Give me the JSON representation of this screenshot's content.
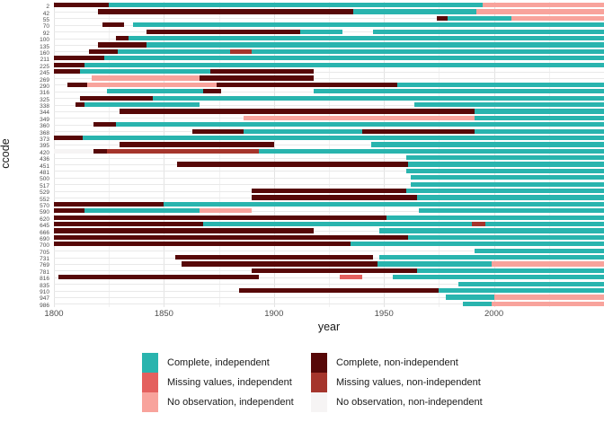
{
  "figure": {
    "x_axis_title": "year",
    "y_axis_title": "ccode",
    "x_ticks": [
      1800,
      1850,
      1900,
      1950,
      2000
    ],
    "x_minor": [
      1825,
      1875,
      1925,
      1975,
      2025
    ],
    "grid": {
      "major_color": "#e3e3e3",
      "minor_color": "#f1f1f1",
      "row_line_color": "#e9e9e9"
    },
    "background": "#ffffff"
  },
  "legend": {
    "items": [
      {
        "key": "CI",
        "label": "Complete, independent",
        "color": "#29b4ae"
      },
      {
        "key": "MI",
        "label": "Missing values, independent",
        "color": "#e4605e"
      },
      {
        "key": "NI",
        "label": "No observation, independent",
        "color": "#f8a39c"
      },
      {
        "key": "CN",
        "label": "Complete, non-independent",
        "color": "#570808"
      },
      {
        "key": "MN",
        "label": "Missing values, non-independent",
        "color": "#a5352c"
      },
      {
        "key": "NN",
        "label": "No observation, non-independent",
        "color": "#f6f4f4"
      }
    ],
    "columns": [
      [
        "CI",
        "MI",
        "NI"
      ],
      [
        "CN",
        "MN",
        "NN"
      ]
    ]
  },
  "chart_data": {
    "type": "status-timeline-gantt",
    "title": "",
    "xlabel": "year",
    "ylabel": "ccode",
    "x_range": [
      1800,
      2050
    ],
    "x_ticks": [
      1800,
      1850,
      1900,
      1950,
      2000
    ],
    "legend_position": "bottom",
    "rows": [
      {
        "code": "2",
        "segments": [
          [
            1800,
            1825,
            "CN"
          ],
          [
            1825,
            1995,
            "CI"
          ],
          [
            1995,
            2050,
            "NI"
          ]
        ]
      },
      {
        "code": "42",
        "segments": [
          [
            1820,
            1936,
            "CN"
          ],
          [
            1936,
            1992,
            "CI"
          ],
          [
            1992,
            2050,
            "NI"
          ]
        ]
      },
      {
        "code": "55",
        "segments": [
          [
            1974,
            1979,
            "CN"
          ],
          [
            1979,
            2008,
            "CI"
          ],
          [
            2008,
            2050,
            "NI"
          ]
        ]
      },
      {
        "code": "70",
        "segments": [
          [
            1822,
            1832,
            "CN"
          ],
          [
            1836,
            2050,
            "CI"
          ]
        ]
      },
      {
        "code": "92",
        "segments": [
          [
            1842,
            1912,
            "CN"
          ],
          [
            1912,
            1931,
            "CI"
          ],
          [
            1945,
            2050,
            "CI"
          ]
        ]
      },
      {
        "code": "100",
        "segments": [
          [
            1828,
            1834,
            "CN"
          ],
          [
            1834,
            2050,
            "CI"
          ]
        ]
      },
      {
        "code": "135",
        "segments": [
          [
            1820,
            1842,
            "CN"
          ],
          [
            1842,
            2050,
            "CI"
          ]
        ]
      },
      {
        "code": "160",
        "segments": [
          [
            1816,
            1829,
            "CN"
          ],
          [
            1829,
            1880,
            "CI"
          ],
          [
            1880,
            1890,
            "MN"
          ],
          [
            1890,
            2050,
            "CI"
          ]
        ]
      },
      {
        "code": "211",
        "segments": [
          [
            1800,
            1823,
            "CN"
          ],
          [
            1823,
            2050,
            "CI"
          ]
        ]
      },
      {
        "code": "225",
        "segments": [
          [
            1800,
            1814,
            "CN"
          ],
          [
            1814,
            2050,
            "CI"
          ]
        ]
      },
      {
        "code": "245",
        "segments": [
          [
            1800,
            1812,
            "CN"
          ],
          [
            1812,
            1871,
            "CI"
          ],
          [
            1871,
            1918,
            "CN"
          ]
        ]
      },
      {
        "code": "269",
        "segments": [
          [
            1817,
            1866,
            "NI"
          ],
          [
            1866,
            1918,
            "CN"
          ]
        ]
      },
      {
        "code": "290",
        "segments": [
          [
            1806,
            1815,
            "CN"
          ],
          [
            1815,
            1874,
            "NI"
          ],
          [
            1874,
            1956,
            "CN"
          ],
          [
            1956,
            2050,
            "CI"
          ]
        ]
      },
      {
        "code": "316",
        "segments": [
          [
            1824,
            1868,
            "CI"
          ],
          [
            1868,
            1876,
            "CN"
          ],
          [
            1918,
            2050,
            "CI"
          ]
        ]
      },
      {
        "code": "325",
        "segments": [
          [
            1812,
            1845,
            "CN"
          ],
          [
            1845,
            2050,
            "CI"
          ]
        ]
      },
      {
        "code": "338",
        "segments": [
          [
            1810,
            1814,
            "CN"
          ],
          [
            1814,
            1866,
            "CI"
          ],
          [
            1964,
            2050,
            "CI"
          ]
        ]
      },
      {
        "code": "344",
        "segments": [
          [
            1830,
            1991,
            "CN"
          ],
          [
            1991,
            2050,
            "CI"
          ]
        ]
      },
      {
        "code": "349",
        "segments": [
          [
            1886,
            1991,
            "NI"
          ],
          [
            1991,
            2050,
            "CI"
          ]
        ]
      },
      {
        "code": "360",
        "segments": [
          [
            1818,
            1828,
            "CN"
          ],
          [
            1828,
            2050,
            "CI"
          ]
        ]
      },
      {
        "code": "368",
        "segments": [
          [
            1863,
            1886,
            "CN"
          ],
          [
            1886,
            1940,
            "CI"
          ],
          [
            1940,
            1991,
            "CN"
          ],
          [
            1991,
            2050,
            "CI"
          ]
        ]
      },
      {
        "code": "373",
        "segments": [
          [
            1800,
            1813,
            "CN"
          ],
          [
            1813,
            2050,
            "CI"
          ]
        ]
      },
      {
        "code": "395",
        "segments": [
          [
            1830,
            1900,
            "CN"
          ],
          [
            1944,
            2050,
            "CI"
          ]
        ]
      },
      {
        "code": "420",
        "segments": [
          [
            1800,
            1818,
            "NN"
          ],
          [
            1818,
            1824,
            "CN"
          ],
          [
            1824,
            1893,
            "MN"
          ],
          [
            1893,
            2050,
            "CI"
          ]
        ]
      },
      {
        "code": "436",
        "segments": [
          [
            1960,
            2050,
            "CI"
          ]
        ]
      },
      {
        "code": "451",
        "segments": [
          [
            1856,
            1961,
            "CN"
          ],
          [
            1961,
            2050,
            "CI"
          ]
        ]
      },
      {
        "code": "481",
        "segments": [
          [
            1960,
            2050,
            "CI"
          ]
        ]
      },
      {
        "code": "500",
        "segments": [
          [
            1962,
            2050,
            "CI"
          ]
        ]
      },
      {
        "code": "517",
        "segments": [
          [
            1962,
            2050,
            "CI"
          ]
        ]
      },
      {
        "code": "529",
        "segments": [
          [
            1890,
            1960,
            "CN"
          ],
          [
            1960,
            2050,
            "CI"
          ]
        ]
      },
      {
        "code": "552",
        "segments": [
          [
            1890,
            1965,
            "CN"
          ],
          [
            1965,
            2050,
            "CI"
          ]
        ]
      },
      {
        "code": "570",
        "segments": [
          [
            1800,
            1850,
            "CN"
          ],
          [
            1850,
            2050,
            "CI"
          ]
        ]
      },
      {
        "code": "590",
        "segments": [
          [
            1800,
            1814,
            "CN"
          ],
          [
            1814,
            1866,
            "CI"
          ],
          [
            1866,
            1890,
            "NI"
          ],
          [
            1966,
            2050,
            "CI"
          ]
        ]
      },
      {
        "code": "620",
        "segments": [
          [
            1800,
            1951,
            "CN"
          ],
          [
            1951,
            2050,
            "CI"
          ]
        ]
      },
      {
        "code": "645",
        "segments": [
          [
            1800,
            1868,
            "CN"
          ],
          [
            1868,
            1990,
            "CI"
          ],
          [
            1990,
            1996,
            "MN"
          ],
          [
            1996,
            2050,
            "CI"
          ]
        ]
      },
      {
        "code": "666",
        "segments": [
          [
            1800,
            1918,
            "CN"
          ],
          [
            1948,
            2050,
            "CI"
          ]
        ]
      },
      {
        "code": "690",
        "segments": [
          [
            1800,
            1961,
            "CN"
          ],
          [
            1961,
            2050,
            "CI"
          ]
        ]
      },
      {
        "code": "700",
        "segments": [
          [
            1800,
            1935,
            "CN"
          ],
          [
            1935,
            2050,
            "CI"
          ]
        ]
      },
      {
        "code": "705",
        "segments": [
          [
            1991,
            2050,
            "CI"
          ]
        ]
      },
      {
        "code": "731",
        "segments": [
          [
            1855,
            1945,
            "CN"
          ],
          [
            1948,
            2050,
            "CI"
          ]
        ]
      },
      {
        "code": "769",
        "segments": [
          [
            1858,
            1947,
            "CN"
          ],
          [
            1947,
            1999,
            "CI"
          ],
          [
            1999,
            2050,
            "NI"
          ]
        ]
      },
      {
        "code": "781",
        "segments": [
          [
            1890,
            1965,
            "CN"
          ],
          [
            1965,
            2050,
            "CI"
          ]
        ]
      },
      {
        "code": "816",
        "segments": [
          [
            1802,
            1893,
            "CN"
          ],
          [
            1930,
            1940,
            "MI"
          ],
          [
            1954,
            2050,
            "CI"
          ]
        ]
      },
      {
        "code": "835",
        "segments": [
          [
            1984,
            2050,
            "CI"
          ]
        ]
      },
      {
        "code": "910",
        "segments": [
          [
            1884,
            1975,
            "CN"
          ],
          [
            1975,
            2050,
            "CI"
          ]
        ]
      },
      {
        "code": "947",
        "segments": [
          [
            1978,
            2000,
            "CI"
          ],
          [
            2000,
            2050,
            "NI"
          ]
        ]
      },
      {
        "code": "986",
        "segments": [
          [
            1986,
            1999,
            "CI"
          ],
          [
            1999,
            2050,
            "NI"
          ]
        ]
      }
    ]
  }
}
